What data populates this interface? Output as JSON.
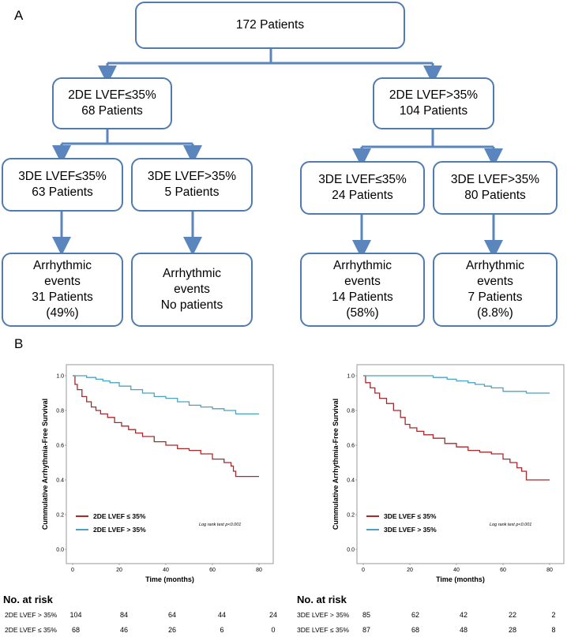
{
  "panelA_label": "A",
  "panelB_label": "B",
  "flowchart": {
    "root": "172 Patients",
    "left_2de": {
      "line1": "2DE LVEF≤35%",
      "line2": "68 Patients"
    },
    "right_2de": {
      "line1": "2DE LVEF>35%",
      "line2": "104 Patients"
    },
    "l3d_low": {
      "line1": "3DE LVEF≤35%",
      "line2": "63 Patients"
    },
    "l3d_high": {
      "line1": "3DE LVEF>35%",
      "line2": "5 Patients"
    },
    "r3d_low": {
      "line1": "3DE LVEF≤35%",
      "line2": "24 Patients"
    },
    "r3d_high": {
      "line1": "3DE LVEF>35%",
      "line2": "80 Patients"
    },
    "ev1": {
      "line1": "Arrhythmic",
      "line2": "events",
      "line3": "31 Patients",
      "line4": "(49%)"
    },
    "ev2": {
      "line1": "Arrhythmic",
      "line2": "events",
      "line3": "No patients"
    },
    "ev3": {
      "line1": "Arrhythmic",
      "line2": "events",
      "line3": "14 Patients",
      "line4": "(58%)"
    },
    "ev4": {
      "line1": "Arrhythmic",
      "line2": "events",
      "line3": "7 Patients",
      "line4": "(8.8%)"
    }
  },
  "colors": {
    "box_border": "#4f7bb1",
    "arrow": "#5b86bd",
    "red": "#a8282b",
    "blue": "#4ba3c1"
  },
  "chart_data": [
    {
      "type": "line",
      "ylabel": "Cummulative Arrhythmia-Free Survival",
      "xlabel": "Time (months)",
      "xlim": [
        0,
        80
      ],
      "ylim": [
        0,
        1
      ],
      "x_ticks": [
        "0",
        "20",
        "40",
        "60",
        "80"
      ],
      "y_ticks": [
        "0.0",
        "0.2",
        "0.4",
        "0.6",
        "0.8",
        "1.0"
      ],
      "annotation": "Log rank test p<0.001",
      "legend_position": "bottom-left",
      "series": [
        {
          "name": "2DE LVEF ≤ 35%",
          "color": "#a8282b",
          "x": [
            0,
            1,
            2,
            4,
            6,
            8,
            10,
            12,
            15,
            18,
            21,
            24,
            27,
            30,
            35,
            40,
            45,
            50,
            55,
            60,
            65,
            68,
            69,
            70,
            80
          ],
          "y": [
            1.0,
            0.95,
            0.92,
            0.88,
            0.85,
            0.82,
            0.8,
            0.78,
            0.76,
            0.73,
            0.71,
            0.69,
            0.67,
            0.65,
            0.62,
            0.6,
            0.58,
            0.57,
            0.55,
            0.52,
            0.5,
            0.48,
            0.45,
            0.42,
            0.42
          ]
        },
        {
          "name": "2DE LVEF > 35%",
          "color": "#4ba3c1",
          "x": [
            0,
            3,
            6,
            10,
            13,
            16,
            20,
            25,
            30,
            35,
            40,
            45,
            50,
            55,
            60,
            65,
            70,
            80
          ],
          "y": [
            1.0,
            1.0,
            0.99,
            0.98,
            0.97,
            0.96,
            0.94,
            0.92,
            0.9,
            0.88,
            0.87,
            0.85,
            0.83,
            0.82,
            0.81,
            0.8,
            0.78,
            0.78
          ]
        }
      ],
      "risk_table": {
        "title": "No. at risk",
        "times": [
          0,
          20,
          40,
          60,
          80
        ],
        "rows": [
          {
            "label": "2DE LVEF > 35%",
            "values": [
              "104",
              "84",
              "64",
              "44",
              "24"
            ]
          },
          {
            "label": "2DE LVEF ≤ 35%",
            "values": [
              "68",
              "46",
              "26",
              "6",
              "0"
            ]
          }
        ]
      }
    },
    {
      "type": "line",
      "ylabel": "Cummulative Arrhythmia-Free Survival",
      "xlabel": "Time (months)",
      "xlim": [
        0,
        80
      ],
      "ylim": [
        0,
        1
      ],
      "x_ticks": [
        "0",
        "20",
        "40",
        "60",
        "80"
      ],
      "y_ticks": [
        "0.0",
        "0.2",
        "0.4",
        "0.6",
        "0.8",
        "1.0"
      ],
      "annotation": "Log rank test p<0.001",
      "legend_position": "bottom-left",
      "series": [
        {
          "name": "3DE LVEF ≤ 35%",
          "color": "#a8282b",
          "x": [
            0,
            1,
            3,
            5,
            7,
            10,
            13,
            16,
            18,
            20,
            23,
            26,
            30,
            35,
            40,
            45,
            50,
            55,
            60,
            63,
            66,
            68,
            70,
            80
          ],
          "y": [
            1.0,
            0.96,
            0.93,
            0.9,
            0.87,
            0.84,
            0.8,
            0.76,
            0.72,
            0.7,
            0.68,
            0.66,
            0.64,
            0.61,
            0.59,
            0.57,
            0.56,
            0.55,
            0.52,
            0.5,
            0.47,
            0.45,
            0.4,
            0.4
          ]
        },
        {
          "name": "3DE LVEF > 35%",
          "color": "#4ba3c1",
          "x": [
            0,
            10,
            20,
            30,
            36,
            40,
            45,
            48,
            52,
            55,
            60,
            65,
            70,
            80
          ],
          "y": [
            1.0,
            1.0,
            1.0,
            0.99,
            0.98,
            0.97,
            0.96,
            0.95,
            0.94,
            0.93,
            0.91,
            0.91,
            0.9,
            0.9
          ]
        }
      ],
      "risk_table": {
        "title": "No. at risk",
        "times": [
          0,
          20,
          40,
          60,
          80
        ],
        "rows": [
          {
            "label": "3DE LVEF > 35%",
            "values": [
              "85",
              "62",
              "42",
              "22",
              "2"
            ]
          },
          {
            "label": "3DE LVEF ≤ 35%",
            "values": [
              "87",
              "68",
              "48",
              "28",
              "8"
            ]
          }
        ]
      }
    }
  ]
}
